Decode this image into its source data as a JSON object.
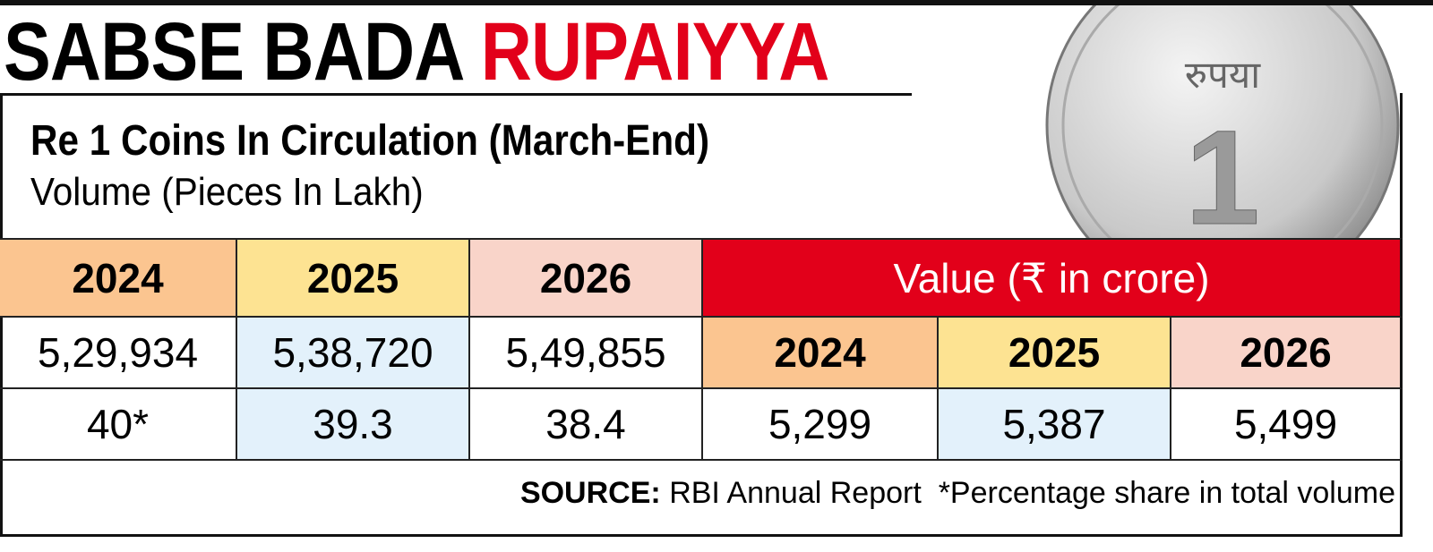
{
  "header": {
    "title_black": "SABSE BADA",
    "title_red": "RUPAIYYA",
    "subtitle": "Re 1 Coins In Circulation (March-End)",
    "unit": "Volume (Pieces In Lakh)"
  },
  "coin": {
    "script": "रुपया",
    "numeral": "1"
  },
  "table": {
    "volume_years": [
      "2024",
      "2025",
      "2026"
    ],
    "value_header": "Value (₹ in crore)",
    "volume": [
      "5,29,934",
      "5,38,720",
      "5,49,855"
    ],
    "value_years": [
      "2024",
      "2025",
      "2026"
    ],
    "share": [
      "40*",
      "39.3",
      "38.4"
    ],
    "value": [
      "5,299",
      "5,387",
      "5,499"
    ]
  },
  "footer": {
    "source_label": "SOURCE:",
    "source": "RBI Annual Report  *Percentage share in total volume"
  }
}
